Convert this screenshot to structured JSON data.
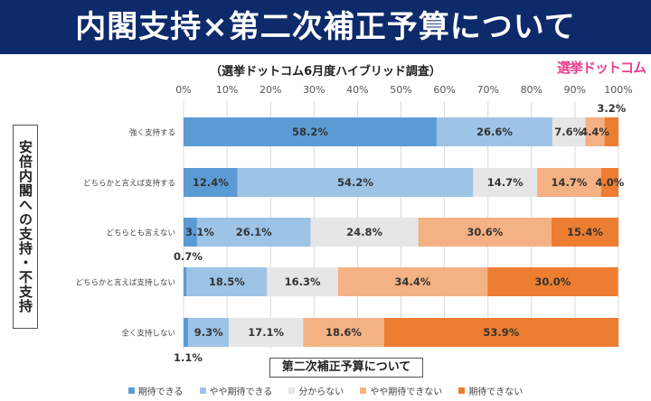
{
  "banner": {
    "title": "内閣支持×第二次補正予算について"
  },
  "subtitle": "（選挙ドットコム6月度ハイブリッド調査）",
  "logo": "選挙ドットコム",
  "colors": [
    "#5b9bd5",
    "#9dc3e6",
    "#e7e6e6",
    "#f4b183",
    "#ed7d31"
  ],
  "chart_data": {
    "type": "bar",
    "orientation": "horizontal",
    "stacked": "percent",
    "ylabel": "安倍内閣への支持・不支持",
    "xlabel": "第二次補正予算について",
    "xlim": [
      0,
      100
    ],
    "x_ticks": [
      "0%",
      "10%",
      "20%",
      "30%",
      "40%",
      "50%",
      "60%",
      "70%",
      "80%",
      "90%",
      "100%"
    ],
    "categories": [
      "強く支持する",
      "どちらかと言えば支持する",
      "どちらとも言えない",
      "どちらかと言えば支持しない",
      "全く支持しない"
    ],
    "series": [
      {
        "name": "期待できる",
        "values": [
          58.2,
          12.4,
          3.1,
          0.7,
          1.1
        ]
      },
      {
        "name": "やや期待できる",
        "values": [
          26.6,
          54.2,
          26.1,
          18.5,
          9.3
        ]
      },
      {
        "name": "分からない",
        "values": [
          7.6,
          14.7,
          24.8,
          16.3,
          17.1
        ]
      },
      {
        "name": "やや期待できない",
        "values": [
          4.4,
          14.7,
          30.6,
          34.4,
          18.6
        ]
      },
      {
        "name": "期待できない",
        "values": [
          3.2,
          4.0,
          15.4,
          30.0,
          53.9
        ]
      }
    ],
    "legend_position": "bottom",
    "grid": true
  }
}
